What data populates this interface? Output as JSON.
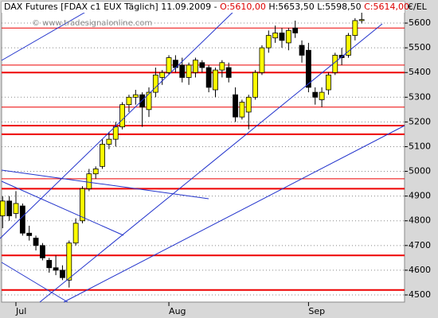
{
  "chart_data": {
    "type": "candlestick",
    "title": "DAX Futures [FDAX c1 EUX  Täglich] 11.09.2009 -",
    "open_label": "O:5610,00",
    "high_low_label": "H:5653,50 L:5598,50",
    "close_label": "C:5614,00",
    "watermark": "© www.tradesignalonline.com",
    "y_unit": "€/EL",
    "categories": [
      null,
      null,
      "Jul",
      null,
      null,
      null,
      null,
      null,
      null,
      null,
      null,
      null,
      null,
      null,
      null,
      null,
      null,
      null,
      null,
      null,
      null,
      null,
      null,
      null,
      null,
      "Aug",
      null,
      null,
      null,
      null,
      null,
      null,
      null,
      null,
      null,
      null,
      null,
      null,
      null,
      null,
      null,
      null,
      null,
      null,
      null,
      null,
      "Sep",
      null,
      null,
      null,
      null,
      null,
      null,
      null,
      null
    ],
    "open": [
      4820,
      4880,
      4830,
      4860,
      4750,
      4730,
      4700,
      4640,
      4610,
      4600,
      4560,
      4710,
      4800,
      4930,
      4990,
      5020,
      5110,
      5130,
      5180,
      5270,
      5300,
      5310,
      5250,
      5320,
      5380,
      5400,
      5450,
      5430,
      5380,
      5400,
      5440,
      5420,
      5330,
      5410,
      5420,
      5310,
      5220,
      5240,
      5300,
      5400,
      5500,
      5540,
      5560,
      5520,
      5580,
      5510,
      5490,
      5320,
      5290,
      5330,
      5400,
      5470,
      5470,
      5550,
      5610
    ],
    "high": [
      4900,
      4900,
      4920,
      4870,
      4780,
      4740,
      4710,
      4650,
      4660,
      4620,
      4720,
      4810,
      4940,
      5010,
      5020,
      5130,
      5160,
      5200,
      5280,
      5310,
      5330,
      5320,
      5340,
      5420,
      5410,
      5470,
      5470,
      5460,
      5440,
      5460,
      5450,
      5430,
      5420,
      5450,
      5440,
      5340,
      5290,
      5310,
      5410,
      5510,
      5570,
      5590,
      5580,
      5580,
      5610,
      5530,
      5520,
      5340,
      5340,
      5400,
      5480,
      5500,
      5560,
      5620,
      5653.5
    ],
    "low": [
      4770,
      4800,
      4810,
      4740,
      4720,
      4680,
      4640,
      4590,
      4580,
      4560,
      4530,
      4700,
      4790,
      4920,
      4970,
      5010,
      5090,
      5100,
      5170,
      5240,
      5270,
      5180,
      5220,
      5300,
      5350,
      5390,
      5400,
      5360,
      5350,
      5380,
      5400,
      5320,
      5300,
      5380,
      5360,
      5200,
      5210,
      5170,
      5290,
      5390,
      5480,
      5520,
      5500,
      5490,
      5540,
      5440,
      5320,
      5270,
      5260,
      5310,
      5390,
      5430,
      5460,
      5530,
      5598.5
    ],
    "close": [
      4880,
      4820,
      4870,
      4750,
      4740,
      4700,
      4650,
      4610,
      4600,
      4570,
      4710,
      4790,
      4930,
      4990,
      5010,
      5110,
      5130,
      5180,
      5270,
      5300,
      5310,
      5260,
      5320,
      5390,
      5400,
      5460,
      5420,
      5380,
      5430,
      5450,
      5420,
      5340,
      5410,
      5440,
      5380,
      5220,
      5280,
      5300,
      5400,
      5500,
      5550,
      5560,
      5530,
      5570,
      5560,
      5470,
      5340,
      5300,
      5320,
      5390,
      5470,
      5460,
      5550,
      5610,
      5614
    ],
    "up_color": "#ffff00",
    "down_color": "#000000",
    "levels": [
      5580,
      5430,
      5400,
      5260,
      5185,
      5150,
      4970,
      4930,
      4660,
      4520
    ],
    "level_color": "#ee0000",
    "ylim": [
      4471,
      5687
    ],
    "yticks": [
      4500,
      4600,
      4700,
      4800,
      4900,
      5000,
      5100,
      5200,
      5300,
      5400,
      5500,
      5600
    ],
    "grid": true
  }
}
